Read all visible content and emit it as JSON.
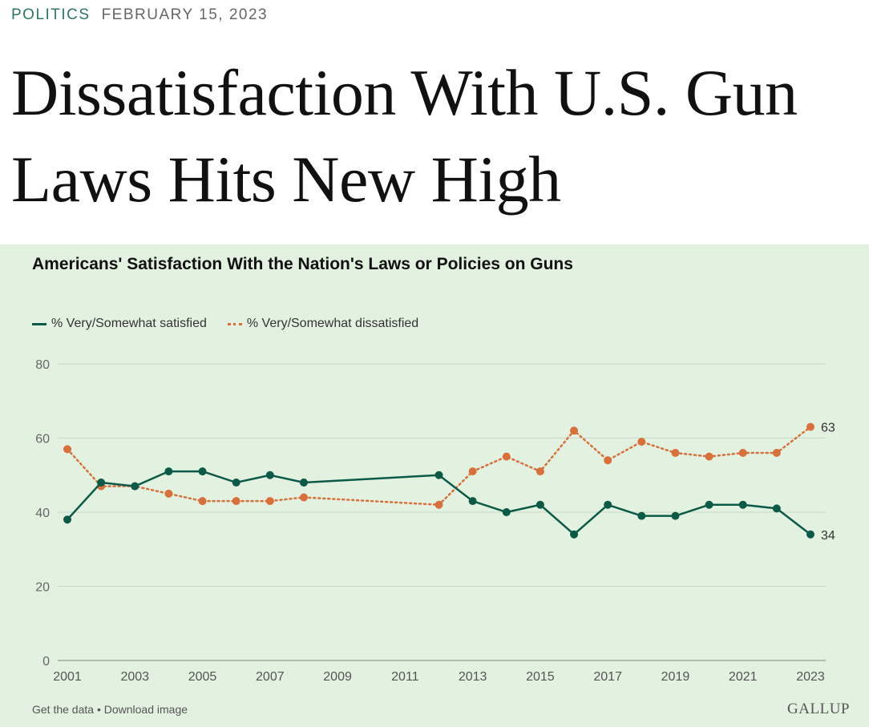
{
  "article": {
    "section": "POLITICS",
    "date": "FEBRUARY 15, 2023",
    "headline": "Dissatisfaction With U.S. Gun Laws Hits New High"
  },
  "colors": {
    "satisfied": "#0b5a48",
    "dissatisfied": "#d9703a",
    "panel": "#e2f1e0"
  },
  "chart_data": {
    "type": "line",
    "title": "Americans' Satisfaction With the Nation's Laws or Policies on Guns",
    "xlabel": "",
    "ylabel": "",
    "ylim": [
      0,
      80
    ],
    "yticks": [
      0,
      20,
      40,
      60,
      80
    ],
    "xlim": [
      2001,
      2023
    ],
    "xticks": [
      2001,
      2003,
      2005,
      2007,
      2009,
      2011,
      2013,
      2015,
      2017,
      2019,
      2021,
      2023
    ],
    "grid": "horizontal",
    "legend": "top-left",
    "x": [
      2001,
      2002,
      2003,
      2004,
      2005,
      2006,
      2007,
      2008,
      2012,
      2013,
      2014,
      2015,
      2016,
      2017,
      2018,
      2019,
      2020,
      2021,
      2022,
      2023
    ],
    "series": [
      {
        "name": "% Very/Somewhat satisfied",
        "style": "solid",
        "values": [
          38,
          48,
          47,
          51,
          51,
          48,
          50,
          48,
          50,
          43,
          40,
          42,
          34,
          42,
          39,
          39,
          42,
          42,
          41,
          34
        ],
        "end_label": "34"
      },
      {
        "name": "% Very/Somewhat dissatisfied",
        "style": "dotted",
        "values": [
          57,
          47,
          47,
          45,
          43,
          43,
          43,
          44,
          42,
          51,
          55,
          51,
          62,
          54,
          59,
          56,
          55,
          56,
          56,
          63
        ],
        "end_label": "63"
      }
    ]
  },
  "footer": {
    "links": "Get the data • Download image",
    "logo": "GALLUP"
  }
}
